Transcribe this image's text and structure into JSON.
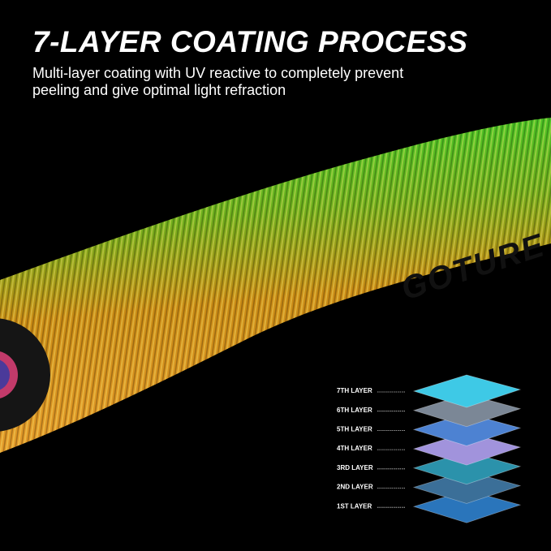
{
  "header": {
    "title": "7-LAYER COATING PROCESS",
    "subtitle_lines": [
      "Multi-layer coating with UV reactive to completely prevent",
      "peeling and give optimal light refraction"
    ]
  },
  "brand": "GOTURE",
  "layers": [
    {
      "label": "7TH LAYER",
      "color": "#3ec9e6"
    },
    {
      "label": "6TH LAYER",
      "color": "#7b8796"
    },
    {
      "label": "5TH LAYER",
      "color": "#4d82d2"
    },
    {
      "label": "4TH LAYER",
      "color": "#a193dc"
    },
    {
      "label": "3RD LAYER",
      "color": "#2b92ab"
    },
    {
      "label": "2ND LAYER",
      "color": "#3b6f98"
    },
    {
      "label": "1ST LAYER",
      "color": "#2a75bb"
    }
  ]
}
